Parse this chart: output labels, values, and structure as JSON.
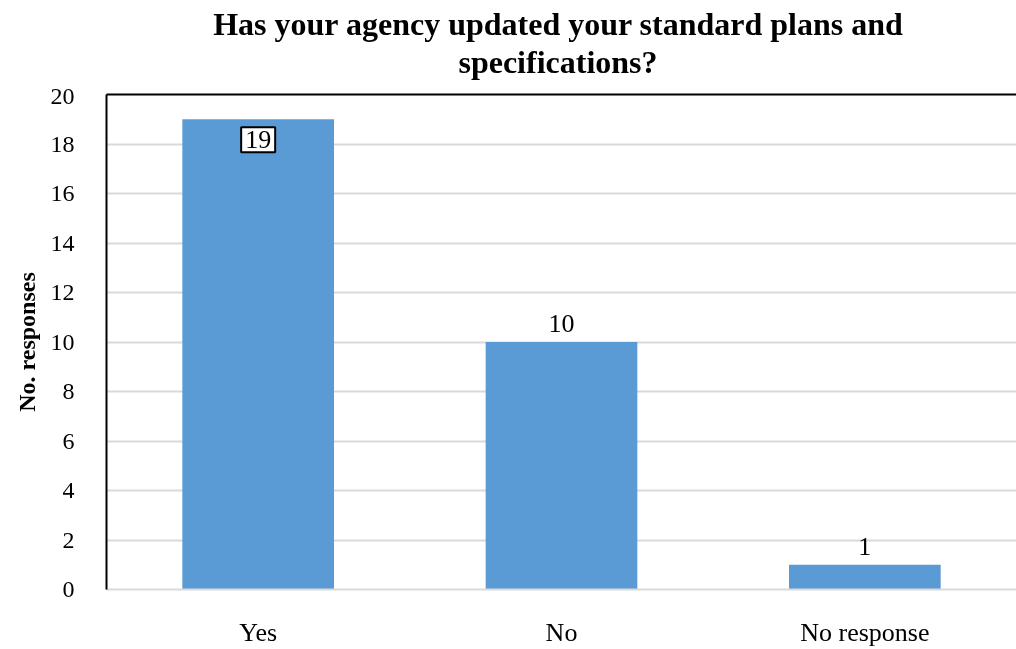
{
  "chart_data": {
    "type": "bar",
    "title": "Has your agency updated your standard plans and specifications?",
    "ylabel": "No. responses",
    "categories": [
      "Yes",
      "No",
      "No response"
    ],
    "values": [
      19,
      10,
      1
    ],
    "color": "#5b9bd5",
    "ylim": [
      0,
      20
    ],
    "yticks": [
      0,
      2,
      4,
      6,
      8,
      10,
      12,
      14,
      16,
      18,
      20
    ],
    "grid": "y",
    "data_labels": true
  }
}
